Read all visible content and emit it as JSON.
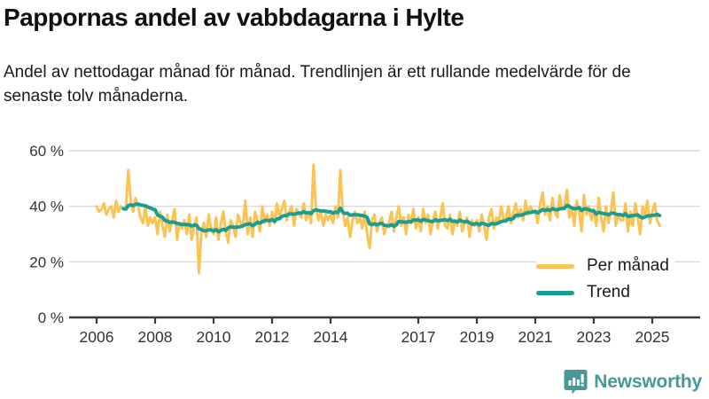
{
  "header": {
    "title": "Pappornas andel av vabbdagarna i Hylte",
    "subtitle": "Andel av nettodagar månad för månad. Trendlinjen är ett rullande medelvärde för de senaste tolv månaderna."
  },
  "chart_data": {
    "type": "line",
    "title": "Pappornas andel av vabbdagarna i Hylte",
    "subtitle": "Andel av nettodagar månad för månad. Trendlinjen är ett rullande medelvärde för de senaste tolv månaderna.",
    "unit": "%",
    "x_start": "2006-01",
    "x_end": "2025-04",
    "x_tick_years": [
      2006,
      2008,
      2010,
      2012,
      2014,
      2017,
      2019,
      2021,
      2023,
      2025
    ],
    "y_tick_values": [
      0,
      20,
      40,
      60
    ],
    "y_tick_labels": [
      "0 %",
      "20 %",
      "40 %",
      "60 %"
    ],
    "ylim": [
      0,
      62
    ],
    "grid": true,
    "legend_position": "bottom-right",
    "colors": {
      "monthly": "#FBC353",
      "trend": "#1B9E91",
      "grid": "#DCDCDC",
      "axis": "#3A3A3A",
      "tick_text": "#333333"
    },
    "series": [
      {
        "name": "Per månad",
        "color": "#FBC353",
        "kind": "monthly",
        "values": [
          40,
          38,
          39,
          41,
          37,
          39,
          40,
          36,
          42,
          38,
          40,
          39,
          39,
          53,
          42,
          38,
          43,
          40,
          36,
          34,
          40,
          33,
          36,
          34,
          36,
          30,
          38,
          33,
          29,
          37,
          31,
          35,
          39,
          28,
          34,
          32,
          35,
          30,
          37,
          28,
          33,
          36,
          16,
          31,
          34,
          29,
          37,
          32,
          30,
          36,
          28,
          34,
          38,
          31,
          27,
          35,
          33,
          29,
          37,
          34,
          33,
          42,
          30,
          36,
          29,
          38,
          35,
          31,
          40,
          34,
          37,
          33,
          38,
          34,
          41,
          36,
          39,
          42,
          35,
          38,
          40,
          33,
          39,
          37,
          36,
          41,
          35,
          38,
          34,
          55,
          39,
          35,
          38,
          33,
          37,
          35,
          37,
          34,
          40,
          36,
          53,
          38,
          33,
          36,
          29,
          35,
          38,
          34,
          36,
          32,
          38,
          30,
          25,
          35,
          37,
          31,
          34,
          36,
          30,
          33,
          34,
          38,
          31,
          36,
          40,
          33,
          36,
          30,
          37,
          34,
          39,
          32,
          36,
          31,
          39,
          34,
          37,
          30,
          35,
          38,
          32,
          36,
          41,
          33,
          32,
          37,
          30,
          35,
          33,
          38,
          31,
          34,
          36,
          29,
          35,
          33,
          35,
          31,
          37,
          33,
          28,
          36,
          39,
          32,
          36,
          34,
          40,
          35,
          36,
          40,
          34,
          38,
          41,
          36,
          39,
          35,
          42,
          37,
          40,
          38,
          38,
          34,
          41,
          45,
          37,
          40,
          35,
          43,
          38,
          36,
          44,
          39,
          40,
          46,
          36,
          39,
          33,
          42,
          38,
          31,
          44,
          37,
          40,
          35,
          39,
          33,
          43,
          36,
          31,
          40,
          34,
          38,
          45,
          33,
          37,
          35,
          35,
          41,
          31,
          38,
          33,
          41,
          36,
          30,
          40,
          37,
          42,
          34,
          38,
          41,
          35,
          33
        ]
      },
      {
        "name": "Trend",
        "color": "#1B9E91",
        "kind": "rolling_mean_12_months"
      }
    ]
  },
  "footer": {
    "brand": "Newsworthy",
    "brand_color": "#459A97"
  }
}
